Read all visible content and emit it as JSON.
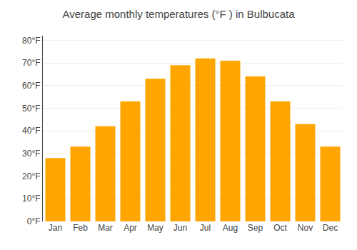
{
  "chart_data": {
    "type": "bar",
    "title": "Average monthly temperatures (°F ) in Bulbucata",
    "categories": [
      "Jan",
      "Feb",
      "Mar",
      "Apr",
      "May",
      "Jun",
      "Jul",
      "Aug",
      "Sep",
      "Oct",
      "Nov",
      "Dec"
    ],
    "values": [
      28,
      33,
      42,
      53,
      63,
      69,
      72,
      71,
      64,
      53,
      43,
      33
    ],
    "color": "#FFA500",
    "ylim": [
      0,
      82
    ],
    "yticks": [
      {
        "value": 0,
        "label": "0°F"
      },
      {
        "value": 10,
        "label": "10°F"
      },
      {
        "value": 20,
        "label": "20°F"
      },
      {
        "value": 30,
        "label": "30°F"
      },
      {
        "value": 40,
        "label": "40°F"
      },
      {
        "value": 50,
        "label": "50°F"
      },
      {
        "value": 60,
        "label": "60°F"
      },
      {
        "value": 70,
        "label": "70°F"
      },
      {
        "value": 80,
        "label": "80°F"
      }
    ],
    "grid": true
  }
}
